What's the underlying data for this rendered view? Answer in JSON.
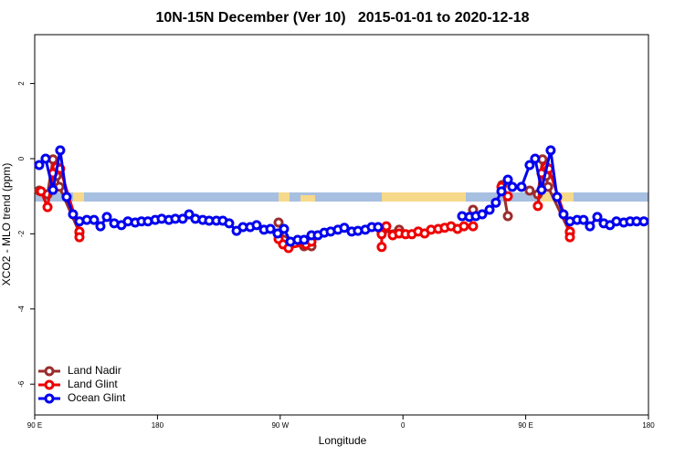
{
  "chart_data": {
    "type": "line",
    "title": "10N-15N December (Ver 10)   2015-01-01 to 2020-12-18",
    "x_label": "Longitude",
    "y_label": "XCO2 - MLO trend (ppm)",
    "xlim": [
      90,
      540
    ],
    "ylim": [
      -6.82,
      3.3
    ],
    "xticks": [
      {
        "value": 90,
        "label": "90 E"
      },
      180,
      {
        "value": 270,
        "label": "90 W"
      },
      {
        "value": 360,
        "label": "0"
      },
      {
        "value": 450,
        "label": "90 E"
      },
      {
        "value": 540,
        "label": "180"
      }
    ],
    "yticks": [
      2,
      0,
      -2,
      -4,
      -6
    ],
    "legend": "bottom-left",
    "series": [
      {
        "name": "Land Nadir",
        "color": "#9b2d2d",
        "x": [
          93.3,
          99.4,
          103.4,
          106.1,
          108.1,
          122.8,
          null,
          268.8,
          272.8,
          null,
          287.5,
          292.9,
          null,
          344.4,
          357.2,
          null,
          411.4,
          null,
          432.8,
          436.9,
          null,
          452.9,
          458.9,
          462.3,
          465.0,
          466.4,
          482.4
        ],
        "values": [
          -0.85,
          -0.95,
          -0.02,
          -0.46,
          -0.75,
          -1.97,
          null,
          -1.7,
          -2.16,
          null,
          -2.33,
          -2.33,
          null,
          -1.97,
          -1.89,
          null,
          -1.36,
          null,
          -0.7,
          -1.53,
          null,
          -0.85,
          -0.95,
          -0.02,
          -0.46,
          -0.75,
          -1.97
        ]
      },
      {
        "name": "Land Glint",
        "color": "#ee0000",
        "x": [
          94.7,
          99.4,
          103.4,
          106.1,
          108.7,
          122.8,
          122.8,
          null,
          268.8,
          272.1,
          276.1,
          288.9,
          292.9,
          null,
          344.4,
          344.4,
          347.8,
          352.5,
          357.2,
          361.9,
          366.5,
          371.2,
          375.9,
          380.6,
          385.9,
          390.6,
          395.3,
          400.0,
          404.7,
          411.4,
          null,
          432.2,
          436.9,
          null,
          458.9,
          461.6,
          465.0,
          467.0,
          482.4,
          482.4
        ],
        "values": [
          -0.87,
          -1.29,
          -0.39,
          -0.22,
          -0.27,
          -1.94,
          -2.09,
          null,
          -2.14,
          -2.28,
          -2.38,
          -2.28,
          -2.21,
          null,
          -2.35,
          -2.01,
          -1.8,
          -2.04,
          -1.99,
          -2.01,
          -2.01,
          -1.94,
          -1.99,
          -1.89,
          -1.87,
          -1.84,
          -1.8,
          -1.87,
          -1.8,
          -1.8,
          null,
          -0.75,
          -1.0,
          null,
          -1.26,
          -0.39,
          -0.22,
          -0.27,
          -1.94,
          -2.09
        ]
      },
      {
        "name": "Ocean Glint",
        "color": "#0000ee",
        "x": [
          93.3,
          98.0,
          103.4,
          108.7,
          113.4,
          118.1,
          122.8,
          128.2,
          133.5,
          138.2,
          142.9,
          148.3,
          153.6,
          158.3,
          163.7,
          168.3,
          173.0,
          178.4,
          183.1,
          188.4,
          193.1,
          198.5,
          203.2,
          207.8,
          213.2,
          217.9,
          223.2,
          227.9,
          232.6,
          238.0,
          242.7,
          248.0,
          252.7,
          258.1,
          262.8,
          268.1,
          272.8,
          277.5,
          282.8,
          287.5,
          292.9,
          297.6,
          302.3,
          307.0,
          312.3,
          317.0,
          322.4,
          327.0,
          332.4,
          337.1,
          341.8,
          null,
          403.4,
          408.7,
          413.4,
          418.1,
          423.5,
          428.1,
          432.2,
          436.9,
          440.2,
          446.9,
          452.9,
          456.9,
          461.6,
          468.3,
          473.0,
          477.7,
          482.4,
          487.7,
          492.4,
          497.1,
          502.5,
          507.2,
          511.8,
          516.5,
          521.9,
          526.6,
          531.3,
          536.6
        ],
        "values": [
          -0.17,
          0,
          -0.83,
          0.22,
          -1.02,
          -1.48,
          -1.67,
          -1.63,
          -1.63,
          -1.8,
          -1.55,
          -1.72,
          -1.77,
          -1.67,
          -1.7,
          -1.67,
          -1.67,
          -1.63,
          -1.6,
          -1.63,
          -1.6,
          -1.6,
          -1.48,
          -1.6,
          -1.63,
          -1.65,
          -1.65,
          -1.65,
          -1.72,
          -1.92,
          -1.82,
          -1.82,
          -1.77,
          -1.89,
          -1.87,
          -1.99,
          -1.87,
          -2.21,
          -2.16,
          -2.16,
          -2.04,
          -2.04,
          -1.97,
          -1.94,
          -1.89,
          -1.84,
          -1.94,
          -1.92,
          -1.89,
          -1.82,
          -1.82,
          null,
          -1.53,
          -1.55,
          -1.53,
          -1.48,
          -1.36,
          -1.17,
          -0.87,
          -0.56,
          -0.75,
          -0.75,
          -0.17,
          0,
          -0.83,
          0.22,
          -1.02,
          -1.48,
          -1.67,
          -1.63,
          -1.63,
          -1.8,
          -1.55,
          -1.72,
          -1.77,
          -1.67,
          -1.7,
          -1.67,
          -1.67,
          -1.67
        ]
      }
    ]
  }
}
